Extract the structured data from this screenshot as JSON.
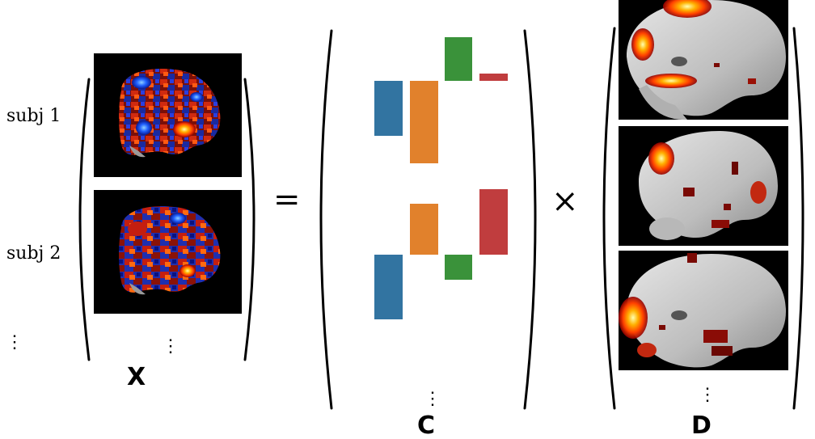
{
  "rows": [
    {
      "label": "subj 1"
    },
    {
      "label": "subj 2"
    }
  ],
  "ellipsis": "⋮",
  "operators": {
    "equals": "=",
    "times": "×"
  },
  "matrices": {
    "x": "X",
    "c": "C",
    "d": "D"
  },
  "colors": {
    "blue": "#3274a1",
    "orange": "#e1812c",
    "green": "#3a923a",
    "red": "#c03d3e",
    "slice_bg": "#000000",
    "hot": "#ff7a00",
    "cold": "#2255dd"
  },
  "panels": {
    "x_slices": [
      "subject map",
      "subject map"
    ],
    "d_slices": [
      "component map",
      "component map",
      "component map"
    ]
  }
}
